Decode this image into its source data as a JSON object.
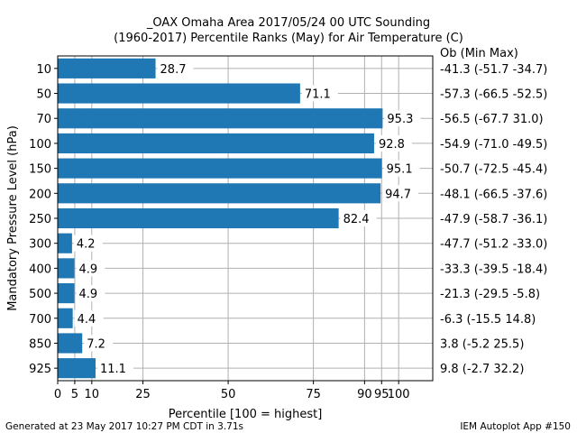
{
  "chart_data": {
    "type": "bar",
    "orientation": "horizontal",
    "title": "_OAX Omaha Area  2017/05/24 00 UTC Sounding",
    "subtitle": "(1960-2017) Percentile Ranks (May) for Air Temperature (C)",
    "xlabel": "Percentile [100 = highest]",
    "ylabel": "Mandatory Pressure Level (hPa)",
    "right_header": "Ob  (Min  Max)",
    "xlim": [
      0,
      110
    ],
    "xticks": [
      0,
      5,
      10,
      25,
      50,
      75,
      90,
      95,
      100
    ],
    "grid": true,
    "bar_color": "#1f77b4",
    "categories": [
      "10",
      "50",
      "70",
      "100",
      "150",
      "200",
      "250",
      "300",
      "400",
      "500",
      "700",
      "850",
      "925"
    ],
    "values": [
      28.7,
      71.1,
      95.3,
      92.8,
      95.1,
      94.7,
      82.4,
      4.2,
      4.9,
      4.9,
      4.4,
      7.2,
      11.1
    ],
    "value_labels": [
      "28.7",
      "71.1",
      "95.3",
      "92.8",
      "95.1",
      "94.7",
      "82.4",
      "4.2",
      "4.9",
      "4.9",
      "4.4",
      "7.2",
      "11.1"
    ],
    "right_labels": [
      "-41.3 (-51.7 -34.7)",
      "-57.3 (-66.5 -52.5)",
      "-56.5 (-67.7 31.0)",
      "-54.9 (-71.0 -49.5)",
      "-50.7 (-72.5 -45.4)",
      "-48.1 (-66.5 -37.6)",
      "-47.9 (-58.7 -36.1)",
      "-47.7 (-51.2 -33.0)",
      "-33.3 (-39.5 -18.4)",
      "-21.3 (-29.5 -5.8)",
      "-6.3 (-15.5 14.8)",
      "3.8 (-5.2 25.5)",
      "9.8 (-2.7 32.2)"
    ]
  },
  "footer": {
    "left": "Generated at 23 May 2017 10:27 PM CDT in 3.71s",
    "right": "IEM Autoplot App #150"
  }
}
